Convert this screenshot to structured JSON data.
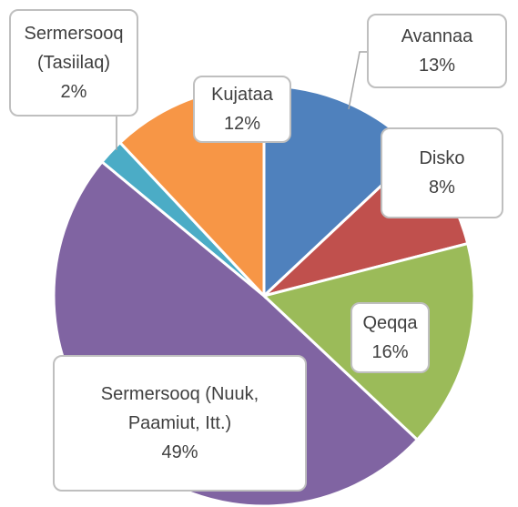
{
  "chart_data": {
    "type": "pie",
    "categories": [
      "Avannaa",
      "Disko",
      "Qeqqa",
      "Sermersooq (Nuuk, Paamiut, Itt.)",
      "Sermersooq (Tasiilaq)",
      "Kujataa"
    ],
    "values": [
      13,
      8,
      16,
      49,
      2,
      12
    ],
    "value_labels": [
      "13%",
      "8%",
      "16%",
      "49%",
      "2%",
      "12%"
    ],
    "colors": [
      "#4f81bd",
      "#c0504d",
      "#9bbb59",
      "#8064a2",
      "#4bacc6",
      "#f79646"
    ]
  }
}
